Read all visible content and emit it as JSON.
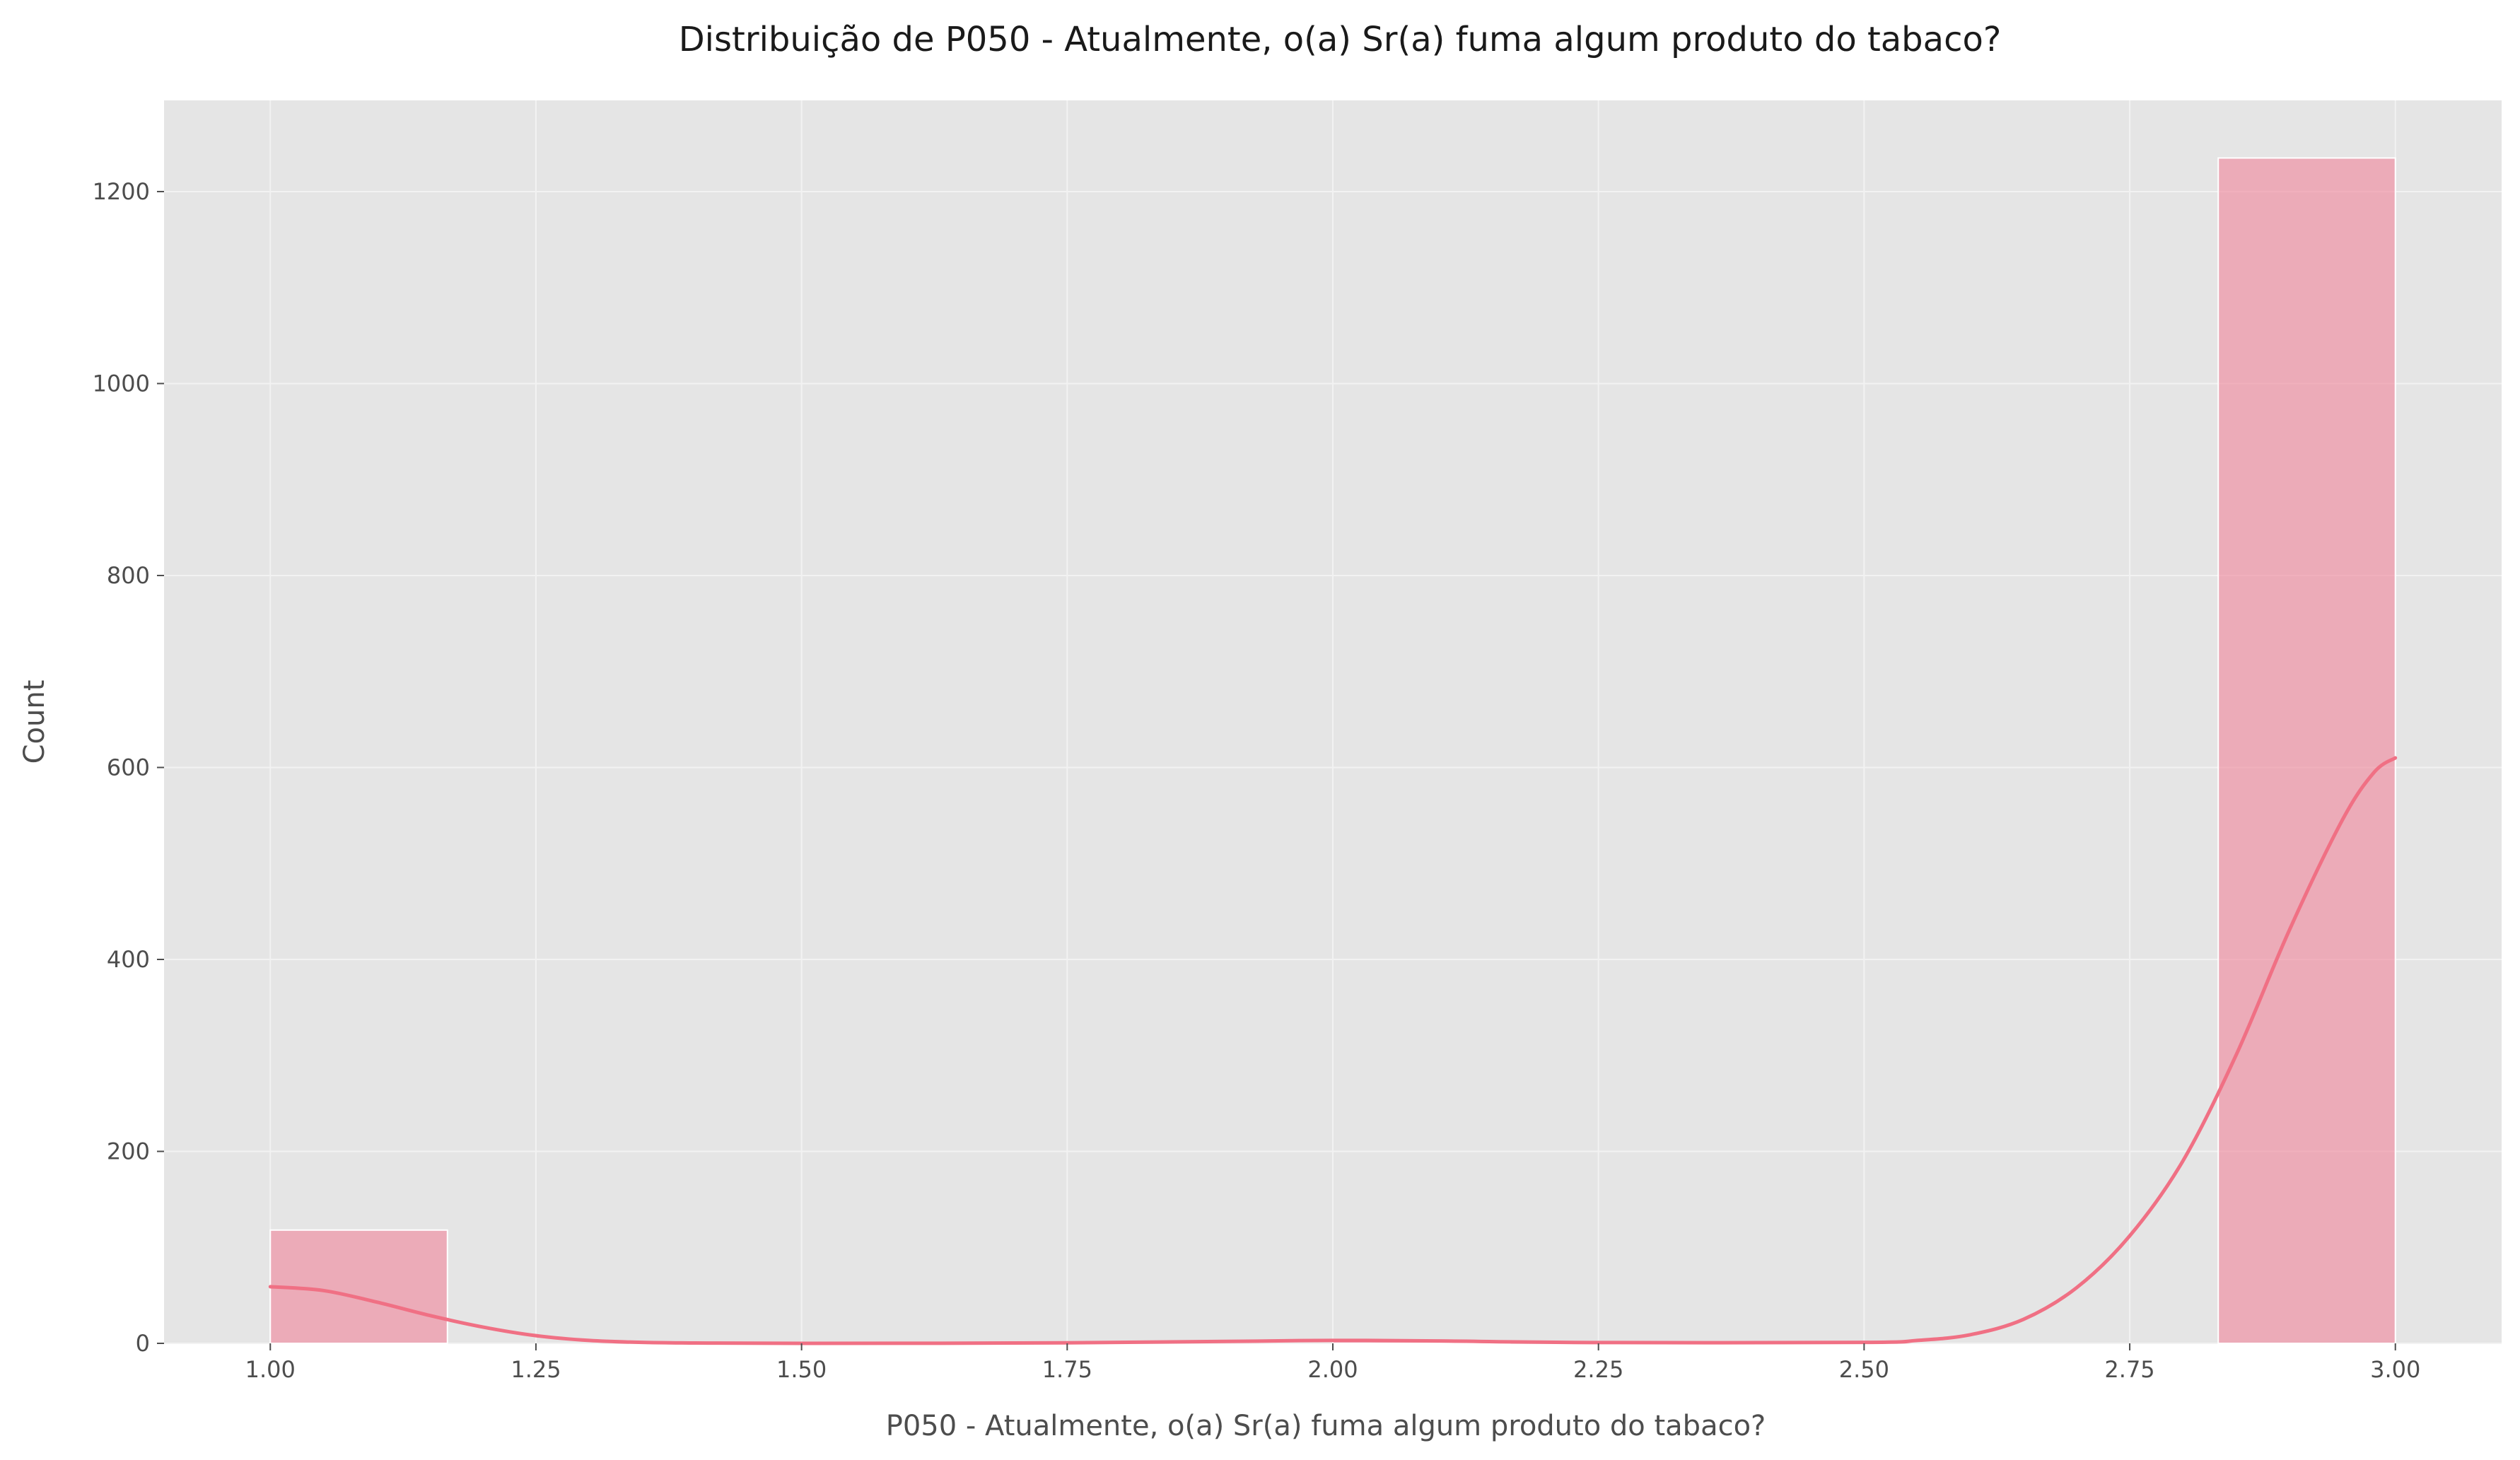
{
  "chart_data": {
    "type": "bar",
    "title": "Distribuição de P050 - Atualmente, o(a) Sr(a) fuma algum produto do tabaco?",
    "xlabel": "P050 - Atualmente, o(a) Sr(a) fuma algum produto do tabaco?",
    "ylabel": "Count",
    "xlim": [
      0.9,
      3.1
    ],
    "ylim": [
      0,
      1295
    ],
    "x_ticks": [
      "1.00",
      "1.25",
      "1.50",
      "1.75",
      "2.00",
      "2.25",
      "2.50",
      "2.75",
      "3.00"
    ],
    "y_ticks": [
      "0",
      "200",
      "400",
      "600",
      "800",
      "1000",
      "1200"
    ],
    "grid": true,
    "bins": [
      {
        "start": 1.0,
        "end": 1.1667,
        "count": 118
      },
      {
        "start": 1.1667,
        "end": 1.3333,
        "count": 0
      },
      {
        "start": 1.3333,
        "end": 1.5,
        "count": 0
      },
      {
        "start": 1.5,
        "end": 1.6667,
        "count": 0
      },
      {
        "start": 1.6667,
        "end": 1.8333,
        "count": 0
      },
      {
        "start": 1.8333,
        "end": 2.0,
        "count": 0
      },
      {
        "start": 2.0,
        "end": 2.1667,
        "count": 2
      },
      {
        "start": 2.1667,
        "end": 2.3333,
        "count": 0
      },
      {
        "start": 2.3333,
        "end": 2.5,
        "count": 0
      },
      {
        "start": 2.5,
        "end": 2.6667,
        "count": 0
      },
      {
        "start": 2.6667,
        "end": 2.8333,
        "count": 0
      },
      {
        "start": 2.8333,
        "end": 3.0,
        "count": 1235
      }
    ],
    "kde": {
      "x": [
        1.0,
        1.05,
        1.1,
        1.15,
        1.2,
        1.25,
        1.3,
        1.35,
        1.4,
        1.5,
        1.75,
        1.9,
        2.0,
        2.1,
        2.25,
        2.5,
        2.55,
        2.6,
        2.65,
        2.7,
        2.75,
        2.8,
        2.85,
        2.9,
        2.95,
        2.98,
        3.0
      ],
      "y": [
        59,
        55,
        43,
        29,
        17,
        8,
        3,
        1,
        0.4,
        0,
        0.5,
        2,
        3,
        2.5,
        0.8,
        1,
        3,
        9,
        25,
        58,
        112,
        190,
        300,
        430,
        545,
        595,
        610
      ]
    },
    "colors": {
      "bar_fill": "#f08ca0",
      "bar_edge": "#ffffff",
      "kde_line": "#f07084",
      "plot_bg": "#e5e5e5",
      "grid": "#f2f2f2"
    }
  }
}
